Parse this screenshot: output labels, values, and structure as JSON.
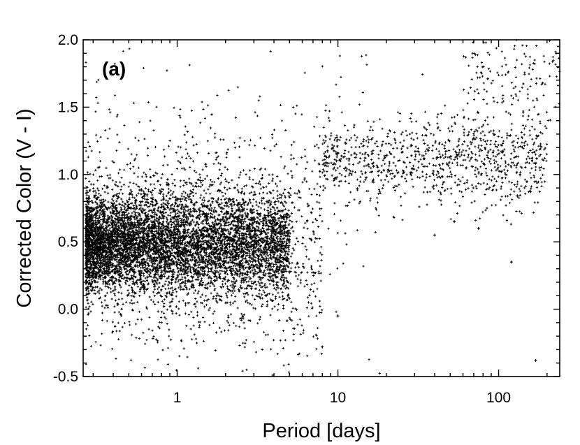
{
  "chart_data": {
    "type": "scatter",
    "panel_label": "(a)",
    "xlabel": "Period [days]",
    "ylabel": "Corrected Color (V - I)",
    "x_scale": "log",
    "xlim": [
      0.26,
      240
    ],
    "ylim": [
      -0.5,
      2.0
    ],
    "x_ticks": [
      1,
      10,
      100
    ],
    "x_tick_labels": [
      "1",
      "10",
      "100"
    ],
    "y_ticks": [
      -0.5,
      0.0,
      0.5,
      1.0,
      1.5,
      2.0
    ],
    "y_tick_labels": [
      "-0.5",
      "0.0",
      "0.5",
      "1.0",
      "1.5",
      "2.0"
    ],
    "grid": false,
    "marker": "+",
    "marker_color": "#000000",
    "point_count_estimate": 9000,
    "density_regions": [
      {
        "period_range": [
          0.27,
          5
        ],
        "color_center": 0.48,
        "color_spread": 0.18,
        "relative_weight": 0.7
      },
      {
        "period_range": [
          0.27,
          8
        ],
        "color_center": 0.5,
        "color_spread": 0.4,
        "relative_weight": 0.15
      },
      {
        "period_range": [
          8,
          40
        ],
        "color_center": 1.1,
        "color_spread": 0.15,
        "relative_weight": 0.05
      },
      {
        "period_range": [
          40,
          200
        ],
        "color_center": 1.12,
        "color_spread": 0.18,
        "relative_weight": 0.06
      },
      {
        "period_range": [
          60,
          240
        ],
        "color_center": 1.75,
        "color_spread": 0.15,
        "relative_weight": 0.015
      },
      {
        "period_range": [
          0.27,
          20
        ],
        "color_center": 0.75,
        "color_spread": 0.7,
        "relative_weight": 0.025
      }
    ],
    "notable_points": [
      {
        "x": 170,
        "y": -0.38
      },
      {
        "x": 120,
        "y": 0.35
      },
      {
        "x": 75,
        "y": 0.6
      },
      {
        "x": 40,
        "y": 0.55
      },
      {
        "x": 53,
        "y": 0.65
      },
      {
        "x": 10,
        "y": -0.05
      },
      {
        "x": 8,
        "y": -0.28
      }
    ]
  }
}
